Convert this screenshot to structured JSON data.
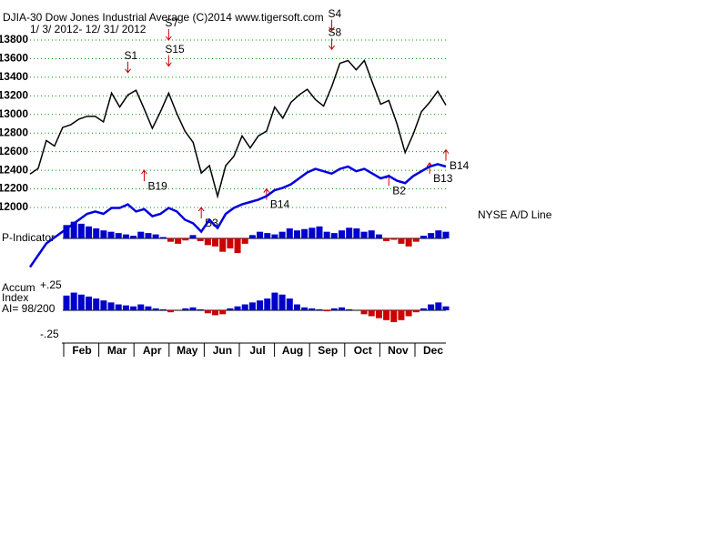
{
  "header": {
    "title": "DJIA-30  Dow Jones Industrial Average   (C)2014 www.tigersoft.com",
    "date_range": "1/ 3/ 2012- 12/ 31/ 2012"
  },
  "x_axis": {
    "labels": [
      "Feb",
      "Mar",
      "Apr",
      "May",
      "Jun",
      "Jul",
      "Aug",
      "Sep",
      "Oct",
      "Nov",
      "Dec"
    ]
  },
  "chart_data": [
    {
      "type": "line",
      "name": "DJIA",
      "color": "#000000",
      "grid": true,
      "values": [
        12360,
        12420,
        12720,
        12660,
        12860,
        12890,
        12950,
        12980,
        12980,
        12920,
        13230,
        13080,
        13210,
        13260,
        13060,
        12850,
        13030,
        13230,
        13010,
        12820,
        12700,
        12370,
        12450,
        12120,
        12450,
        12550,
        12770,
        12640,
        12770,
        12820,
        13080,
        12960,
        13130,
        13210,
        13270,
        13160,
        13090,
        13300,
        13550,
        13580,
        13480,
        13580,
        13340,
        13110,
        13150,
        12900,
        12590,
        12790,
        13030,
        13130,
        13250,
        13100
      ],
      "ylim": [
        12000,
        13800
      ],
      "yticks": [
        12000,
        12200,
        12400,
        12600,
        12800,
        13000,
        13200,
        13400,
        13600,
        13800
      ],
      "signals": [
        {
          "label": "S1",
          "index": 12,
          "value": 13450
        },
        {
          "label": "S7",
          "index": 17,
          "value": 13800
        },
        {
          "label": "S15",
          "index": 17,
          "value": 13520
        },
        {
          "label": "B19",
          "index": 14,
          "value": 12400
        },
        {
          "label": "B3",
          "index": 21,
          "value": 12000
        },
        {
          "label": "B14",
          "index": 29,
          "value": 12200
        },
        {
          "label": "S8",
          "index": 37,
          "value": 13700
        },
        {
          "label": "S4",
          "index": 37,
          "value": 13900
        },
        {
          "label": "B2",
          "index": 44,
          "value": 12350
        },
        {
          "label": "B13",
          "index": 49,
          "value": 12480
        },
        {
          "label": "B14",
          "index": 51,
          "value": 12620
        }
      ]
    },
    {
      "type": "line",
      "name": "NYSE A/D Line",
      "color": "#0000dd",
      "values": [
        5,
        15,
        25,
        30,
        35,
        40,
        45,
        50,
        52,
        50,
        55,
        55,
        58,
        52,
        54,
        48,
        50,
        55,
        52,
        45,
        42,
        35,
        45,
        38,
        50,
        55,
        58,
        60,
        62,
        65,
        70,
        72,
        75,
        80,
        85,
        88,
        86,
        84,
        88,
        90,
        86,
        88,
        84,
        80,
        82,
        78,
        76,
        82,
        86,
        90,
        92,
        90
      ],
      "ylim": [
        0,
        100
      ]
    },
    {
      "type": "bar",
      "name": "P-Indicator",
      "colors": [
        "#0000cc",
        "#cc0000"
      ],
      "values": [
        20,
        25,
        22,
        18,
        15,
        12,
        10,
        8,
        6,
        4,
        10,
        8,
        6,
        2,
        -5,
        -8,
        -3,
        5,
        -4,
        -10,
        -12,
        -20,
        -15,
        -22,
        -8,
        5,
        10,
        8,
        6,
        10,
        15,
        12,
        14,
        16,
        18,
        10,
        8,
        12,
        16,
        15,
        10,
        12,
        6,
        -4,
        -2,
        -8,
        -12,
        -5,
        4,
        8,
        12,
        10
      ],
      "ylim": [
        -30,
        30
      ]
    },
    {
      "type": "bar",
      "name": "Accum",
      "subtitle": "Index",
      "annotation": "AI= 98/200",
      "colors": [
        "#0000cc",
        "#cc0000"
      ],
      "values": [
        0.15,
        0.18,
        0.16,
        0.14,
        0.12,
        0.1,
        0.08,
        0.06,
        0.05,
        0.04,
        0.06,
        0.04,
        0.02,
        0.01,
        -0.02,
        0,
        0.02,
        0.03,
        0.01,
        -0.03,
        -0.05,
        -0.04,
        0.02,
        0.04,
        0.06,
        0.08,
        0.1,
        0.12,
        0.18,
        0.16,
        0.12,
        0.06,
        0.03,
        0.02,
        0.01,
        -0.01,
        0.02,
        0.03,
        0.01,
        0,
        -0.04,
        -0.06,
        -0.08,
        -0.1,
        -0.12,
        -0.1,
        -0.06,
        -0.02,
        0.02,
        0.06,
        0.08,
        0.04
      ],
      "ylim": [
        -0.25,
        0.25
      ],
      "yticks": [
        {
          "value": 0.25,
          "label": "+.25"
        },
        {
          "value": -0.25,
          "label": "-.25"
        }
      ]
    }
  ]
}
